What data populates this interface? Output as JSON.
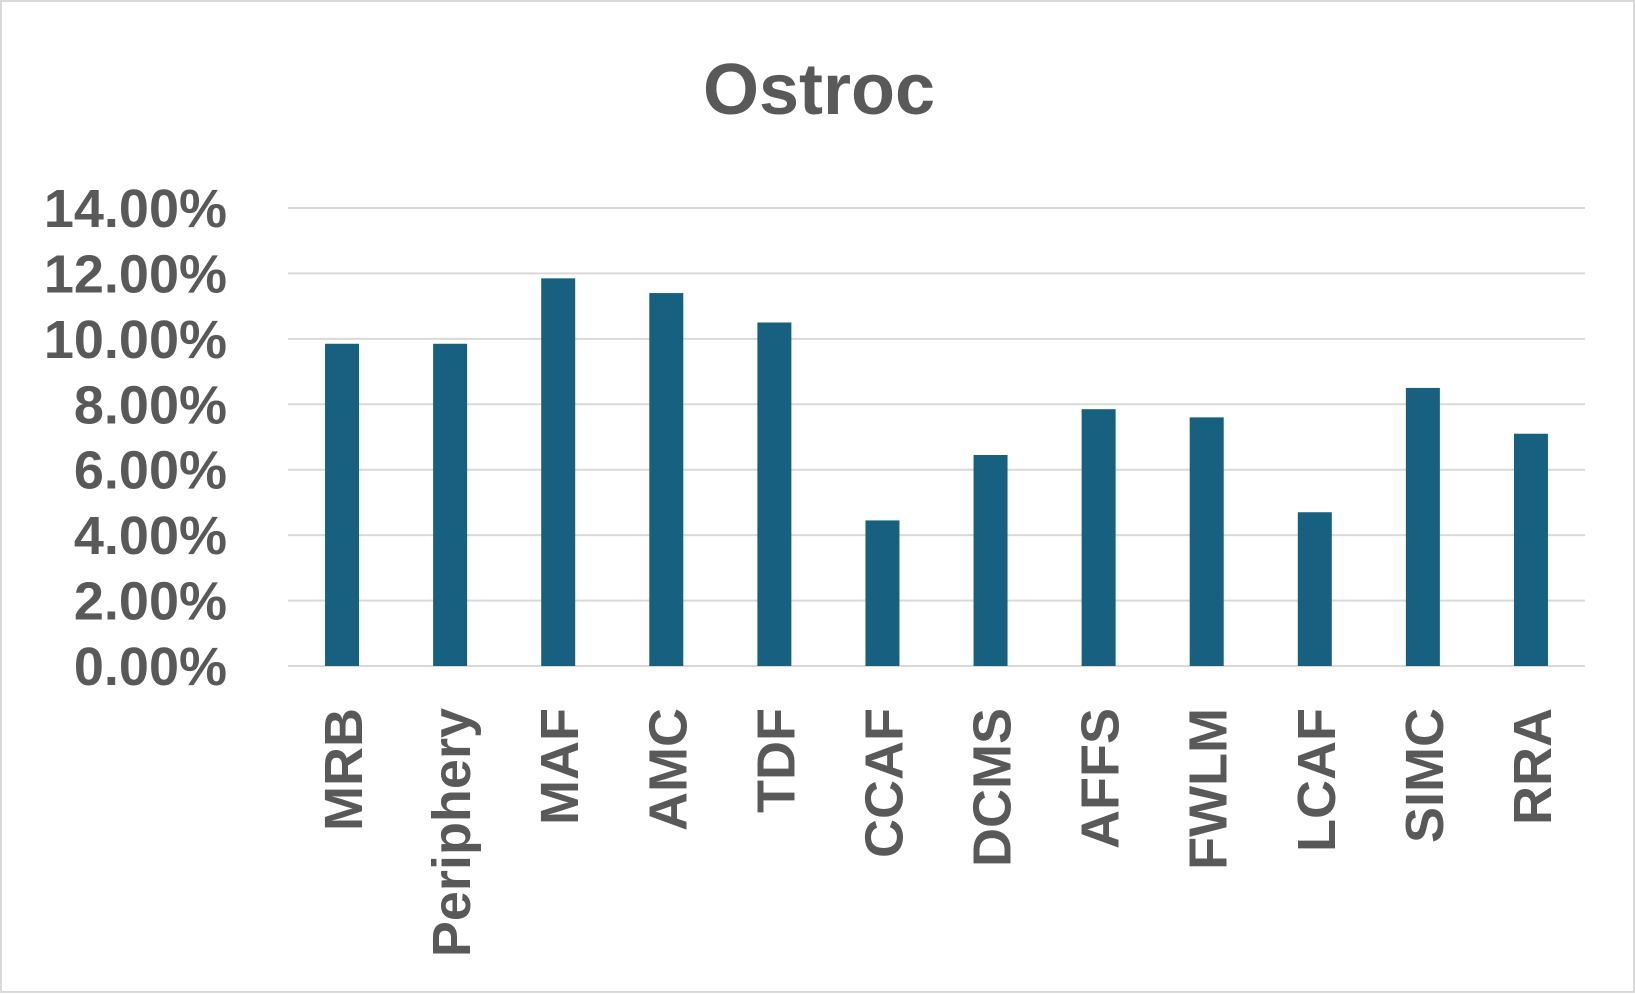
{
  "chart_data": {
    "type": "bar",
    "title": "Ostroc",
    "xlabel": "",
    "ylabel": "",
    "categories": [
      "MRB",
      "Periphery",
      "MAF",
      "AMC",
      "TDF",
      "CCAF",
      "DCMS",
      "AFFS",
      "FWLM",
      "LCAF",
      "SIMC",
      "RRA"
    ],
    "values": [
      9.85,
      9.85,
      11.85,
      11.4,
      10.5,
      4.45,
      6.45,
      7.85,
      7.6,
      4.7,
      8.5,
      7.1
    ],
    "ylim": [
      0,
      14
    ],
    "yticks": [
      "0.00%",
      "2.00%",
      "4.00%",
      "6.00%",
      "8.00%",
      "10.00%",
      "12.00%",
      "14.00%"
    ],
    "grid": true,
    "legend": "none",
    "colors": {
      "bar": "#17607f",
      "grid": "#d9d9d9",
      "text": "#595959"
    }
  }
}
